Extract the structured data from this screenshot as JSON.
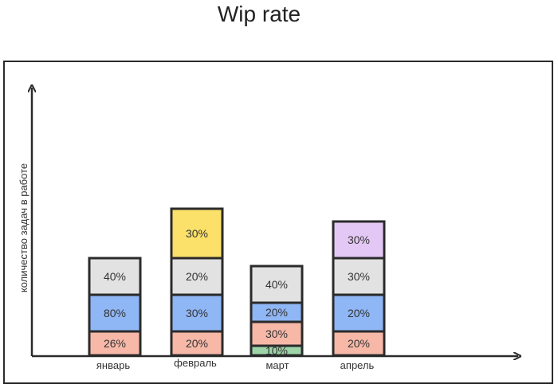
{
  "chart_data": {
    "type": "bar",
    "stacked": true,
    "title": "Wip rate",
    "ylabel": "количество задач в работе",
    "xlabel": "",
    "categories": [
      "январь",
      "февраль",
      "март",
      "апрель"
    ],
    "stacks": [
      {
        "category": "январь",
        "segments": [
          {
            "label": "26%",
            "color": "#f7b8a8"
          },
          {
            "label": "80%",
            "color": "#8fb6f5"
          },
          {
            "label": "40%",
            "color": "#e2e2e2"
          }
        ]
      },
      {
        "category": "февраль",
        "segments": [
          {
            "label": "20%",
            "color": "#f7b8a8"
          },
          {
            "label": "30%",
            "color": "#8fb6f5"
          },
          {
            "label": "20%",
            "color": "#e2e2e2"
          },
          {
            "label": "30%",
            "color": "#fbe06a"
          }
        ]
      },
      {
        "category": "март",
        "segments": [
          {
            "label": "10%",
            "color": "#9dd4a8"
          },
          {
            "label": "30%",
            "color": "#f7b8a8"
          },
          {
            "label": "20%",
            "color": "#8fb6f5"
          },
          {
            "label": "40%",
            "color": "#e2e2e2"
          }
        ]
      },
      {
        "category": "апрель",
        "segments": [
          {
            "label": "20%",
            "color": "#f7b8a8"
          },
          {
            "label": "20%",
            "color": "#8fb6f5"
          },
          {
            "label": "30%",
            "color": "#e2e2e2"
          },
          {
            "label": "30%",
            "color": "#e3c8f5"
          }
        ]
      }
    ],
    "grid": false,
    "legend": "none"
  }
}
